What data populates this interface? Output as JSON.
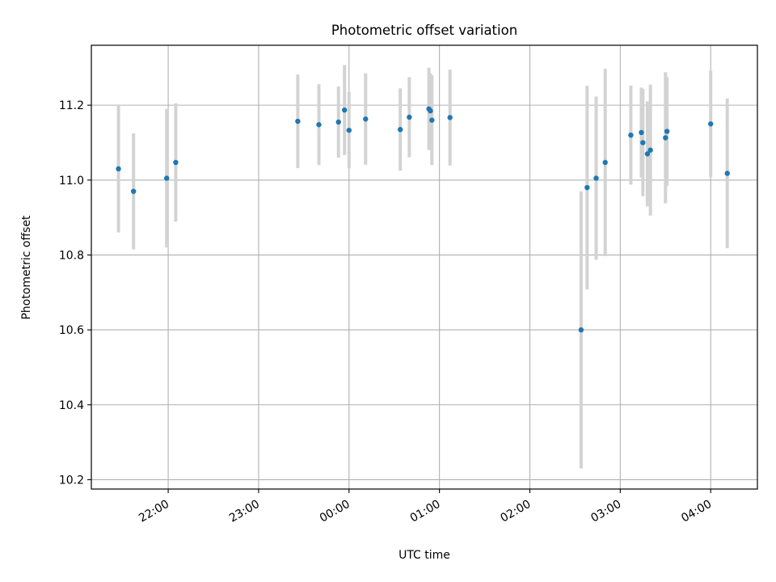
{
  "chart_data": {
    "type": "scatter",
    "title": "Photometric offset variation",
    "xlabel": "UTC time",
    "ylabel": "Photometric offset",
    "x_tick_labels": [
      "22:00",
      "23:00",
      "00:00",
      "01:00",
      "02:00",
      "03:00",
      "04:00"
    ],
    "y_tick_labels": [
      "10.2",
      "10.4",
      "10.6",
      "10.8",
      "11.0",
      "11.2"
    ],
    "xlim": [
      "21:09",
      "04:31"
    ],
    "ylim": [
      10.175,
      11.36
    ],
    "grid": true,
    "series": [
      {
        "points": [
          {
            "time": "21:27",
            "y": 11.03,
            "yerr": 0.17
          },
          {
            "time": "21:37",
            "y": 10.97,
            "yerr": 0.155
          },
          {
            "time": "21:59",
            "y": 11.005,
            "yerr": 0.185
          },
          {
            "time": "22:05",
            "y": 11.047,
            "yerr": 0.158
          },
          {
            "time": "23:26",
            "y": 11.157,
            "yerr": 0.125
          },
          {
            "time": "23:40",
            "y": 11.148,
            "yerr": 0.108
          },
          {
            "time": "23:53",
            "y": 11.155,
            "yerr": 0.095
          },
          {
            "time": "23:57",
            "y": 11.187,
            "yerr": 0.12
          },
          {
            "time": "00:00",
            "y": 11.133,
            "yerr": 0.102
          },
          {
            "time": "00:11",
            "y": 11.163,
            "yerr": 0.122
          },
          {
            "time": "00:34",
            "y": 11.135,
            "yerr": 0.11
          },
          {
            "time": "00:40",
            "y": 11.168,
            "yerr": 0.107
          },
          {
            "time": "00:53",
            "y": 11.19,
            "yerr": 0.11
          },
          {
            "time": "00:54",
            "y": 11.185,
            "yerr": 0.1
          },
          {
            "time": "00:55",
            "y": 11.16,
            "yerr": 0.12
          },
          {
            "time": "01:07",
            "y": 11.167,
            "yerr": 0.128
          },
          {
            "time": "02:34",
            "y": 10.6,
            "yerr": 0.37
          },
          {
            "time": "02:38",
            "y": 10.98,
            "yerr": 0.272
          },
          {
            "time": "02:44",
            "y": 11.005,
            "yerr": 0.218
          },
          {
            "time": "02:50",
            "y": 11.047,
            "yerr": 0.25
          },
          {
            "time": "03:07",
            "y": 11.12,
            "yerr": 0.132
          },
          {
            "time": "03:14",
            "y": 11.127,
            "yerr": 0.12
          },
          {
            "time": "03:15",
            "y": 11.1,
            "yerr": 0.143
          },
          {
            "time": "03:18",
            "y": 11.07,
            "yerr": 0.14
          },
          {
            "time": "03:20",
            "y": 11.08,
            "yerr": 0.175
          },
          {
            "time": "03:30",
            "y": 11.113,
            "yerr": 0.175
          },
          {
            "time": "03:31",
            "y": 11.13,
            "yerr": 0.145
          },
          {
            "time": "04:00",
            "y": 11.15,
            "yerr": 0.142
          },
          {
            "time": "04:11",
            "y": 11.018,
            "yerr": 0.2
          }
        ]
      }
    ]
  },
  "colors": {
    "point": "#1f77b4",
    "errorbar": "#d3d3d3",
    "grid": "#b0b0b0",
    "axes": "#000000"
  }
}
